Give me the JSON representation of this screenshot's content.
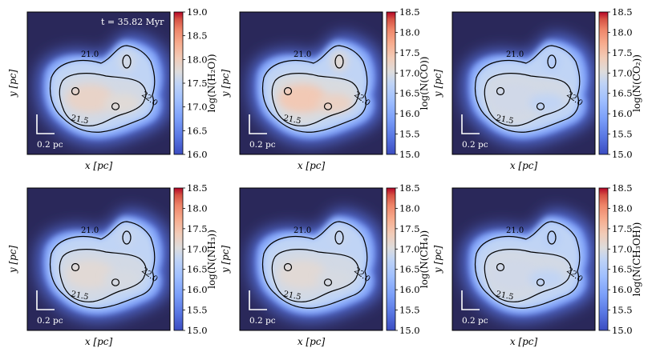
{
  "figure": {
    "time_label": "t = 35.82 Myr",
    "scale_bar_label": "0.2 pc",
    "xlabel": "x [pc]",
    "ylabel": "y [pc]",
    "background_color": "#2a285a"
  },
  "chart_data": [
    {
      "type": "heatmap",
      "species": "H2O",
      "colorbar_label": "log(N(H₂O))",
      "colorbar_range": [
        16.0,
        19.0
      ],
      "colorbar_ticks": [
        "16.0",
        "16.5",
        "17.0",
        "17.5",
        "18.0",
        "18.5",
        "19.0"
      ],
      "contour_levels": [
        "21.0",
        "21.5",
        "22.0"
      ],
      "peak_value": 17.9,
      "xlabel": "x [pc]",
      "ylabel": "y [pc]"
    },
    {
      "type": "heatmap",
      "species": "CO",
      "colorbar_label": "log(N(CO))",
      "colorbar_range": [
        15.0,
        18.5
      ],
      "colorbar_ticks": [
        "15.0",
        "15.5",
        "16.0",
        "16.5",
        "17.0",
        "17.5",
        "18.0",
        "18.5"
      ],
      "contour_levels": [
        "21.0",
        "21.5",
        "22.0"
      ],
      "peak_value": 17.4,
      "xlabel": "x [pc]",
      "ylabel": "y [pc]"
    },
    {
      "type": "heatmap",
      "species": "CO2",
      "colorbar_label": "log(N(CO₂))",
      "colorbar_range": [
        15.0,
        18.5
      ],
      "colorbar_ticks": [
        "15.0",
        "15.5",
        "16.0",
        "16.5",
        "17.0",
        "17.5",
        "18.0",
        "18.5"
      ],
      "contour_levels": [
        "21.0",
        "21.5",
        "22.0"
      ],
      "peak_value": 16.9,
      "xlabel": "x [pc]",
      "ylabel": "y [pc]"
    },
    {
      "type": "heatmap",
      "species": "NH3",
      "colorbar_label": "log(N(NH₃))",
      "colorbar_range": [
        15.0,
        18.5
      ],
      "colorbar_ticks": [
        "15.0",
        "15.5",
        "16.0",
        "16.5",
        "17.0",
        "17.5",
        "18.0",
        "18.5"
      ],
      "contour_levels": [
        "21.0",
        "21.5",
        "22.0"
      ],
      "peak_value": 17.1,
      "xlabel": "x [pc]",
      "ylabel": "y [pc]"
    },
    {
      "type": "heatmap",
      "species": "CH4",
      "colorbar_label": "log(N(CH₄))",
      "colorbar_range": [
        15.0,
        18.5
      ],
      "colorbar_ticks": [
        "15.0",
        "15.5",
        "16.0",
        "16.5",
        "17.0",
        "17.5",
        "18.0",
        "18.5"
      ],
      "contour_levels": [
        "21.0",
        "21.5",
        "22.0"
      ],
      "peak_value": 17.1,
      "xlabel": "x [pc]",
      "ylabel": "y [pc]"
    },
    {
      "type": "heatmap",
      "species": "CH3OH",
      "colorbar_label": "log(N(CH₃OH))",
      "colorbar_range": [
        15.0,
        18.5
      ],
      "colorbar_ticks": [
        "15.0",
        "15.5",
        "16.0",
        "16.5",
        "17.0",
        "17.5",
        "18.0",
        "18.5"
      ],
      "contour_levels": [
        "21.0",
        "21.5",
        "22.0"
      ],
      "peak_value": 16.9,
      "xlabel": "x [pc]",
      "ylabel": "y [pc]"
    }
  ]
}
